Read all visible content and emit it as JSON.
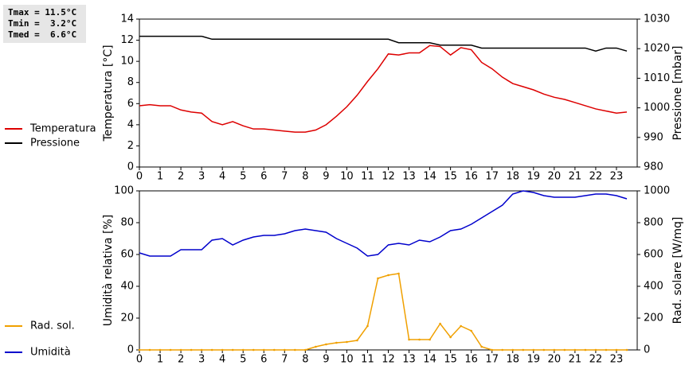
{
  "chart_data": [
    {
      "type": "line",
      "annotations": [
        "Tmax = 11.5°C",
        "Tmin =  3.2°C",
        "Tmed =  6.6°C"
      ],
      "ylabel": "Temperatura [°C]",
      "y2label": "Pressione [mbar]",
      "grid": false,
      "x": [
        0,
        0.5,
        1,
        1.5,
        2,
        2.5,
        3,
        3.5,
        4,
        4.5,
        5,
        5.5,
        6,
        6.5,
        7,
        7.5,
        8,
        8.5,
        9,
        9.5,
        10,
        10.5,
        11,
        11.5,
        12,
        12.5,
        13,
        13.5,
        14,
        14.5,
        15,
        15.5,
        16,
        16.5,
        17,
        17.5,
        18,
        18.5,
        19,
        19.5,
        20,
        20.5,
        21,
        21.5,
        22,
        22.5,
        23,
        23.5
      ],
      "xlim": [
        0,
        24
      ],
      "xticks": [
        0,
        1,
        2,
        3,
        4,
        5,
        6,
        7,
        8,
        9,
        10,
        11,
        12,
        13,
        14,
        15,
        16,
        17,
        18,
        19,
        20,
        21,
        22,
        23
      ],
      "ylim": [
        0,
        14
      ],
      "yticks": [
        0,
        2,
        4,
        6,
        8,
        10,
        12,
        14
      ],
      "y2lim": [
        980,
        1030
      ],
      "y2ticks": [
        980,
        990,
        1000,
        1010,
        1020,
        1030
      ],
      "series": [
        {
          "name": "Temperatura",
          "color": "#dd0000",
          "values": [
            5.8,
            5.9,
            5.8,
            5.8,
            5.4,
            5.2,
            5.1,
            4.3,
            4.0,
            4.3,
            3.9,
            3.6,
            3.6,
            3.5,
            3.4,
            3.3,
            3.3,
            3.5,
            4.0,
            4.8,
            5.7,
            6.8,
            8.1,
            9.3,
            10.7,
            10.6,
            10.8,
            10.8,
            11.5,
            11.4,
            10.6,
            11.3,
            11.1,
            9.9,
            9.3,
            8.5,
            7.9,
            7.6,
            7.3,
            6.9,
            6.6,
            6.4,
            6.1,
            5.8,
            5.5,
            5.3,
            5.1,
            5.2
          ]
        },
        {
          "name": "Pressione",
          "color": "#000000",
          "axis": "y2",
          "values": [
            1024.2,
            1024.2,
            1024.2,
            1024.2,
            1024.2,
            1024.2,
            1024.2,
            1023.2,
            1023.2,
            1023.2,
            1023.2,
            1023.2,
            1023.2,
            1023.2,
            1023.2,
            1023.2,
            1023.2,
            1023.2,
            1023.2,
            1023.2,
            1023.2,
            1023.2,
            1023.2,
            1023.2,
            1023.2,
            1022,
            1022,
            1022,
            1022,
            1021.2,
            1021.2,
            1021.2,
            1021.2,
            1020.2,
            1020.2,
            1020.2,
            1020.2,
            1020.2,
            1020.2,
            1020.2,
            1020.2,
            1020.2,
            1020.2,
            1020.2,
            1019.2,
            1020.2,
            1020.2,
            1019.2
          ]
        }
      ]
    },
    {
      "type": "line",
      "ylabel": "Umidità relativa [%]",
      "y2label": "Rad. solare [W/mq]",
      "grid": false,
      "x": [
        0,
        0.5,
        1,
        1.5,
        2,
        2.5,
        3,
        3.5,
        4,
        4.5,
        5,
        5.5,
        6,
        6.5,
        7,
        7.5,
        8,
        8.5,
        9,
        9.5,
        10,
        10.5,
        11,
        11.5,
        12,
        12.5,
        13,
        13.5,
        14,
        14.5,
        15,
        15.5,
        16,
        16.5,
        17,
        17.5,
        18,
        18.5,
        19,
        19.5,
        20,
        20.5,
        21,
        21.5,
        22,
        22.5,
        23,
        23.5
      ],
      "xlim": [
        0,
        24
      ],
      "xticks": [
        0,
        1,
        2,
        3,
        4,
        5,
        6,
        7,
        8,
        9,
        10,
        11,
        12,
        13,
        14,
        15,
        16,
        17,
        18,
        19,
        20,
        21,
        22,
        23
      ],
      "ylim": [
        0,
        100
      ],
      "yticks": [
        0,
        20,
        40,
        60,
        80,
        100
      ],
      "y2lim": [
        0,
        1000
      ],
      "y2ticks": [
        0,
        200,
        400,
        600,
        800,
        1000
      ],
      "series": [
        {
          "name": "Umidità",
          "color": "#0000cc",
          "values": [
            61,
            59,
            59,
            59,
            63,
            63,
            63,
            69,
            70,
            66,
            69,
            71,
            72,
            72,
            73,
            75,
            76,
            75,
            74,
            70,
            67,
            64,
            59,
            60,
            66,
            67,
            66,
            69,
            68,
            71,
            75,
            76,
            79,
            83,
            87,
            91,
            98,
            100,
            99,
            97,
            96,
            96,
            96,
            97,
            98,
            98,
            97,
            95
          ]
        },
        {
          "name": "Rad. sol.",
          "color": "#f0a000",
          "axis": "y2",
          "markers": true,
          "values": [
            0,
            0,
            0,
            0,
            0,
            0,
            0,
            0,
            0,
            0,
            0,
            0,
            0,
            0,
            0,
            0,
            0,
            20,
            35,
            45,
            50,
            60,
            150,
            450,
            470,
            480,
            65,
            65,
            65,
            165,
            80,
            150,
            120,
            20,
            0,
            0,
            0,
            0,
            0,
            0,
            0,
            0,
            0,
            0,
            0,
            0,
            0,
            0
          ]
        }
      ]
    }
  ]
}
